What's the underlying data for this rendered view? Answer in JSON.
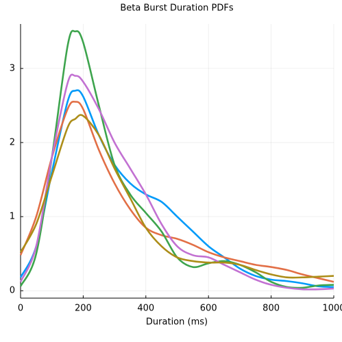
{
  "chart_data": {
    "type": "line",
    "title": "Beta Burst Duration PDFs",
    "x_label": "Duration (ms)",
    "x": [
      0,
      50,
      100,
      150,
      175,
      200,
      250,
      300,
      350,
      400,
      450,
      500,
      550,
      600,
      650,
      700,
      750,
      800,
      850,
      900,
      950,
      1000
    ],
    "series": [
      {
        "color": "#009af9",
        "values": [
          0.18,
          0.6,
          1.6,
          2.55,
          2.7,
          2.62,
          2.1,
          1.7,
          1.45,
          1.3,
          1.2,
          1.0,
          0.8,
          0.6,
          0.45,
          0.3,
          0.2,
          0.15,
          0.13,
          0.1,
          0.06,
          0.05
        ]
      },
      {
        "color": "#e26f46",
        "values": [
          0.48,
          1.0,
          1.8,
          2.45,
          2.55,
          2.45,
          1.9,
          1.45,
          1.1,
          0.85,
          0.75,
          0.7,
          0.62,
          0.52,
          0.45,
          0.4,
          0.35,
          0.32,
          0.28,
          0.22,
          0.17,
          0.12
        ]
      },
      {
        "color": "#3da44d",
        "values": [
          0.06,
          0.5,
          1.8,
          3.3,
          3.5,
          3.35,
          2.5,
          1.7,
          1.3,
          1.05,
          0.8,
          0.45,
          0.32,
          0.37,
          0.4,
          0.35,
          0.25,
          0.12,
          0.05,
          0.04,
          0.07,
          0.08
        ]
      },
      {
        "color": "#c271d2",
        "values": [
          0.12,
          0.6,
          1.8,
          2.8,
          2.9,
          2.82,
          2.45,
          2.0,
          1.65,
          1.3,
          0.9,
          0.6,
          0.48,
          0.45,
          0.35,
          0.25,
          0.15,
          0.08,
          0.04,
          0.02,
          0.02,
          0.03
        ]
      },
      {
        "color": "#ac8d18",
        "values": [
          0.52,
          0.9,
          1.55,
          2.2,
          2.32,
          2.36,
          2.1,
          1.65,
          1.25,
          0.85,
          0.6,
          0.45,
          0.4,
          0.38,
          0.38,
          0.35,
          0.28,
          0.22,
          0.18,
          0.18,
          0.19,
          0.2
        ]
      }
    ],
    "xlim": [
      0,
      1000
    ],
    "xticks": [
      0,
      200,
      400,
      600,
      800,
      1000
    ],
    "ylim": [
      -0.1,
      3.6
    ],
    "yticks": [
      0,
      1,
      2,
      3
    ],
    "grid": true
  }
}
